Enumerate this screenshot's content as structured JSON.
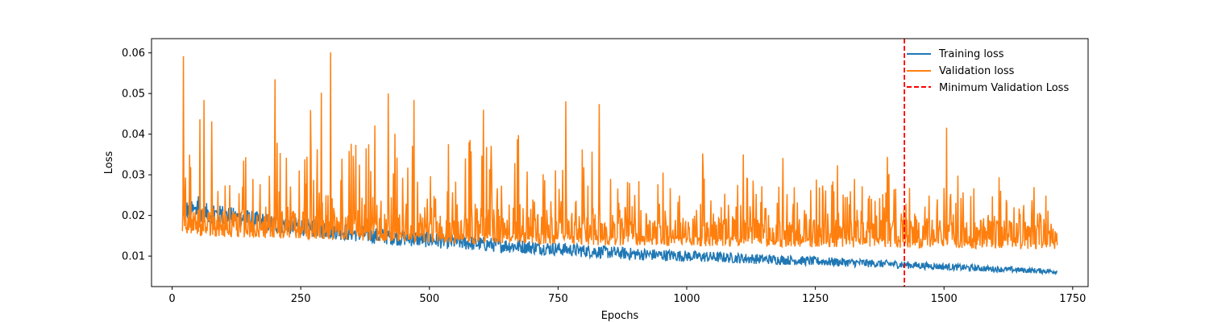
{
  "chart_data": {
    "type": "line",
    "xlabel": "Epochs",
    "ylabel": "Loss",
    "xlim": [
      -40,
      1780
    ],
    "ylim": [
      0.0025,
      0.0635
    ],
    "xticks": [
      0,
      250,
      500,
      750,
      1000,
      1250,
      1500,
      1750
    ],
    "yticks": [
      0.01,
      0.02,
      0.03,
      0.04,
      0.05,
      0.06
    ],
    "xtick_labels": [
      "0",
      "250",
      "500",
      "750",
      "1000",
      "1250",
      "1500",
      "1750"
    ],
    "ytick_labels": [
      "0.01",
      "0.02",
      "0.03",
      "0.04",
      "0.05",
      "0.06"
    ],
    "grid": false,
    "legend_position": "top-right",
    "epoch_range": [
      20,
      1720
    ],
    "series": [
      {
        "name": "Training loss",
        "color": "#1f77b4",
        "trend_points": [
          [
            20,
            0.0215
          ],
          [
            100,
            0.02
          ],
          [
            200,
            0.018
          ],
          [
            300,
            0.0165
          ],
          [
            400,
            0.015
          ],
          [
            500,
            0.014
          ],
          [
            600,
            0.013
          ],
          [
            700,
            0.0122
          ],
          [
            800,
            0.0113
          ],
          [
            900,
            0.0105
          ],
          [
            1000,
            0.01
          ],
          [
            1100,
            0.0095
          ],
          [
            1200,
            0.009
          ],
          [
            1300,
            0.0085
          ],
          [
            1400,
            0.008
          ],
          [
            1500,
            0.0074
          ],
          [
            1600,
            0.0068
          ],
          [
            1720,
            0.0062
          ]
        ],
        "noise_amplitude_start": 0.0025,
        "noise_amplitude_end": 0.0006
      },
      {
        "name": "Validation loss",
        "color": "#ff7f0e",
        "baseline_points": [
          [
            20,
            0.015
          ],
          [
            300,
            0.014
          ],
          [
            600,
            0.013
          ],
          [
            900,
            0.0125
          ],
          [
            1200,
            0.0122
          ],
          [
            1500,
            0.012
          ],
          [
            1720,
            0.0115
          ]
        ],
        "peak_range_start": [
          0.018,
          0.05
        ],
        "peak_range_end": [
          0.016,
          0.031
        ],
        "notable_peaks": [
          [
            22,
            0.0592
          ],
          [
            308,
            0.0601
          ],
          [
            200,
            0.0535
          ],
          [
            290,
            0.0502
          ],
          [
            420,
            0.05
          ],
          [
            470,
            0.0484
          ],
          [
            62,
            0.0484
          ],
          [
            765,
            0.0481
          ],
          [
            605,
            0.046
          ],
          [
            830,
            0.0474
          ],
          [
            1505,
            0.0416
          ],
          [
            1390,
            0.0344
          ]
        ]
      },
      {
        "name": "Minimum Validation Loss",
        "color": "#ff0000",
        "style": "dashed-vertical",
        "x": 1423
      }
    ]
  }
}
